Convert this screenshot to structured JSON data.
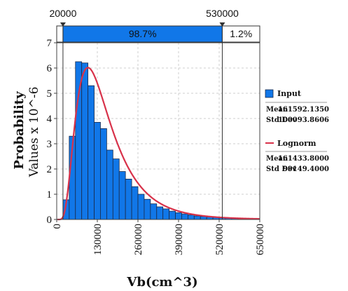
{
  "chart_data": {
    "type": "bar",
    "ylabel": "Probability",
    "ylabel_units": "Values x 10^-6",
    "xlabel": "Vb(cm^3)",
    "xlim": [
      0,
      650000
    ],
    "ylim": [
      0,
      7
    ],
    "xticks": [
      "0",
      "130000",
      "260000",
      "390000",
      "520000",
      "650000"
    ],
    "yticks": [
      "0",
      "1",
      "2",
      "3",
      "4",
      "5",
      "6",
      "7"
    ],
    "bin_width": 20000,
    "bins_start": [
      20000,
      40000,
      60000,
      80000,
      100000,
      120000,
      140000,
      160000,
      180000,
      200000,
      220000,
      240000,
      260000,
      280000,
      300000,
      320000,
      340000,
      360000,
      380000,
      400000,
      420000,
      440000,
      460000,
      480000,
      500000,
      520000,
      540000,
      560000,
      580000,
      600000,
      620000
    ],
    "values": [
      0.78,
      3.3,
      6.25,
      6.2,
      5.3,
      3.85,
      3.6,
      2.75,
      2.4,
      1.9,
      1.6,
      1.3,
      1.0,
      0.8,
      0.62,
      0.5,
      0.42,
      0.33,
      0.27,
      0.22,
      0.18,
      0.14,
      0.12,
      0.1,
      0.08,
      0.07,
      0.05,
      0.04,
      0.03,
      0.02,
      0.02
    ],
    "series": [
      {
        "name": "Input",
        "kind": "histogram",
        "color": "#1177e8",
        "stats": {
          "mean_label": "Mean",
          "mean": "161592.1350",
          "std_label": "Std Dev",
          "std": "100093.8606"
        }
      },
      {
        "name": "Lognorm",
        "kind": "line",
        "color": "#d8324a",
        "stats": {
          "mean_label": "Mean",
          "mean": "161433.8000",
          "std_label": "Std Dev",
          "std": "99149.4000"
        }
      }
    ],
    "fit_mean": 161433.8,
    "fit_std": 99149.4,
    "markers": {
      "left": "20000",
      "right": "530000",
      "left_value": 20000,
      "right_value": 530000
    },
    "band": {
      "inside_pct": "98.7%",
      "right_pct": "1.2%"
    },
    "grid": true,
    "legend_position": "right"
  },
  "colors": {
    "bar_fill": "#1177e8",
    "bar_stroke": "#1a2a4a",
    "band_fill": "#1177e8",
    "fit_line": "#d8324a",
    "grid": "#cfcfcf"
  }
}
